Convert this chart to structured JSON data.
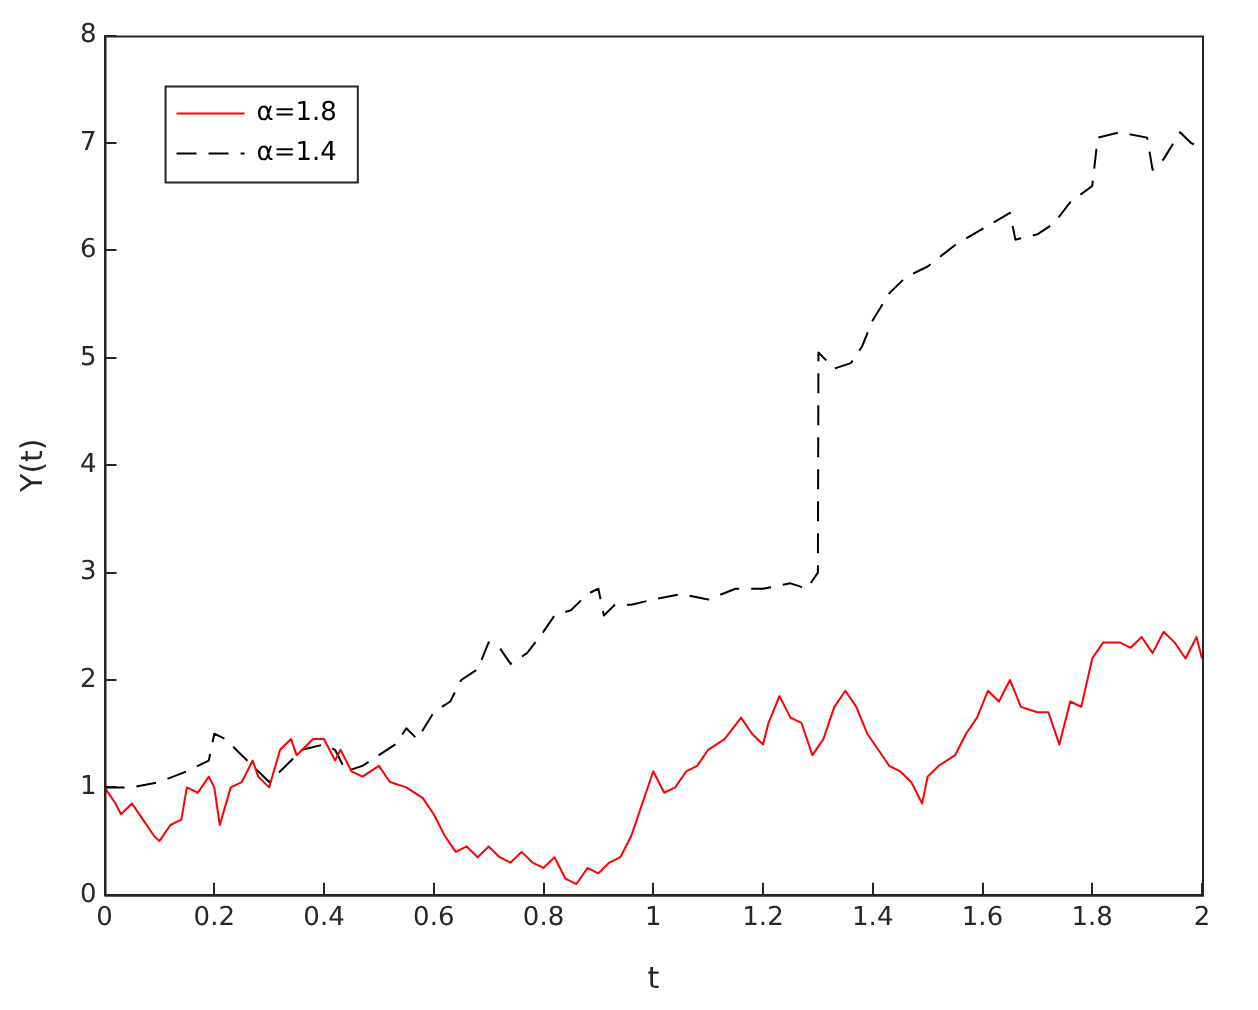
{
  "chart_data": {
    "type": "line",
    "xlabel": "t",
    "ylabel": "Y(t)",
    "xlim": [
      0,
      2
    ],
    "ylim": [
      0,
      8
    ],
    "xticks": [
      0,
      0.2,
      0.4,
      0.6,
      0.8,
      1,
      1.2,
      1.4,
      1.6,
      1.8,
      2
    ],
    "yticks": [
      0,
      1,
      2,
      3,
      4,
      5,
      6,
      7,
      8
    ],
    "grid": false,
    "legend": "top left",
    "marker": "none",
    "series": [
      {
        "name": "α=1.8",
        "color": "#ff0000",
        "line_style": "solid",
        "x": [
          0,
          0.02,
          0.03,
          0.05,
          0.07,
          0.09,
          0.1,
          0.12,
          0.14,
          0.15,
          0.17,
          0.19,
          0.2,
          0.21,
          0.23,
          0.25,
          0.27,
          0.28,
          0.3,
          0.32,
          0.34,
          0.35,
          0.37,
          0.38,
          0.4,
          0.42,
          0.43,
          0.45,
          0.47,
          0.5,
          0.52,
          0.55,
          0.58,
          0.6,
          0.62,
          0.64,
          0.66,
          0.68,
          0.7,
          0.72,
          0.74,
          0.76,
          0.78,
          0.8,
          0.82,
          0.84,
          0.86,
          0.88,
          0.9,
          0.92,
          0.94,
          0.96,
          0.98,
          1,
          1.02,
          1.04,
          1.06,
          1.08,
          1.1,
          1.13,
          1.16,
          1.18,
          1.2,
          1.21,
          1.23,
          1.25,
          1.27,
          1.29,
          1.31,
          1.33,
          1.35,
          1.37,
          1.39,
          1.41,
          1.43,
          1.45,
          1.47,
          1.49,
          1.5,
          1.52,
          1.55,
          1.57,
          1.59,
          1.61,
          1.63,
          1.65,
          1.67,
          1.7,
          1.72,
          1.74,
          1.76,
          1.78,
          1.8,
          1.82,
          1.85,
          1.87,
          1.89,
          1.91,
          1.93,
          1.95,
          1.97,
          1.99,
          2
        ],
        "values": [
          1,
          0.85,
          0.75,
          0.85,
          0.7,
          0.55,
          0.5,
          0.65,
          0.7,
          1,
          0.95,
          1.1,
          1,
          0.65,
          1,
          1.05,
          1.25,
          1.1,
          1,
          1.35,
          1.45,
          1.3,
          1.4,
          1.45,
          1.45,
          1.25,
          1.35,
          1.15,
          1.1,
          1.2,
          1.05,
          1,
          0.9,
          0.75,
          0.55,
          0.4,
          0.45,
          0.35,
          0.45,
          0.35,
          0.3,
          0.4,
          0.3,
          0.25,
          0.35,
          0.15,
          0.1,
          0.25,
          0.2,
          0.3,
          0.35,
          0.55,
          0.85,
          1.15,
          0.95,
          1,
          1.15,
          1.2,
          1.35,
          1.45,
          1.65,
          1.5,
          1.4,
          1.6,
          1.85,
          1.65,
          1.6,
          1.3,
          1.45,
          1.75,
          1.9,
          1.75,
          1.5,
          1.35,
          1.2,
          1.15,
          1.05,
          0.85,
          1.1,
          1.2,
          1.3,
          1.5,
          1.65,
          1.9,
          1.8,
          2,
          1.75,
          1.7,
          1.7,
          1.4,
          1.8,
          1.75,
          2.2,
          2.35,
          2.35,
          2.3,
          2.4,
          2.25,
          2.45,
          2.35,
          2.2,
          2.4,
          2.2
        ]
      },
      {
        "name": "α=1.4",
        "color": "#000000",
        "line_style": "dashed",
        "x": [
          0,
          0.05,
          0.1,
          0.15,
          0.19,
          0.2,
          0.22,
          0.25,
          0.28,
          0.3,
          0.33,
          0.36,
          0.4,
          0.42,
          0.44,
          0.47,
          0.5,
          0.53,
          0.55,
          0.57,
          0.6,
          0.63,
          0.65,
          0.68,
          0.7,
          0.72,
          0.74,
          0.77,
          0.8,
          0.82,
          0.85,
          0.88,
          0.9,
          0.91,
          0.93,
          0.96,
          1,
          1.05,
          1.1,
          1.15,
          1.2,
          1.25,
          1.28,
          1.3,
          1.301,
          1.33,
          1.36,
          1.38,
          1.4,
          1.43,
          1.46,
          1.5,
          1.55,
          1.6,
          1.65,
          1.66,
          1.7,
          1.73,
          1.76,
          1.8,
          1.81,
          1.85,
          1.9,
          1.91,
          1.93,
          1.96,
          1.98,
          2
        ],
        "values": [
          1,
          1,
          1.05,
          1.15,
          1.25,
          1.5,
          1.45,
          1.3,
          1.15,
          1.05,
          1.2,
          1.35,
          1.4,
          1.35,
          1.15,
          1.2,
          1.3,
          1.4,
          1.55,
          1.45,
          1.7,
          1.8,
          2,
          2.1,
          2.35,
          2.3,
          2.15,
          2.25,
          2.45,
          2.6,
          2.65,
          2.8,
          2.85,
          2.6,
          2.7,
          2.7,
          2.75,
          2.8,
          2.75,
          2.85,
          2.85,
          2.9,
          2.85,
          3,
          5.05,
          4.9,
          4.95,
          5.1,
          5.35,
          5.6,
          5.75,
          5.85,
          6.05,
          6.2,
          6.35,
          6.1,
          6.15,
          6.25,
          6.45,
          6.6,
          7.05,
          7.1,
          7.05,
          6.75,
          6.85,
          7.1,
          7,
          6.95
        ]
      }
    ]
  }
}
